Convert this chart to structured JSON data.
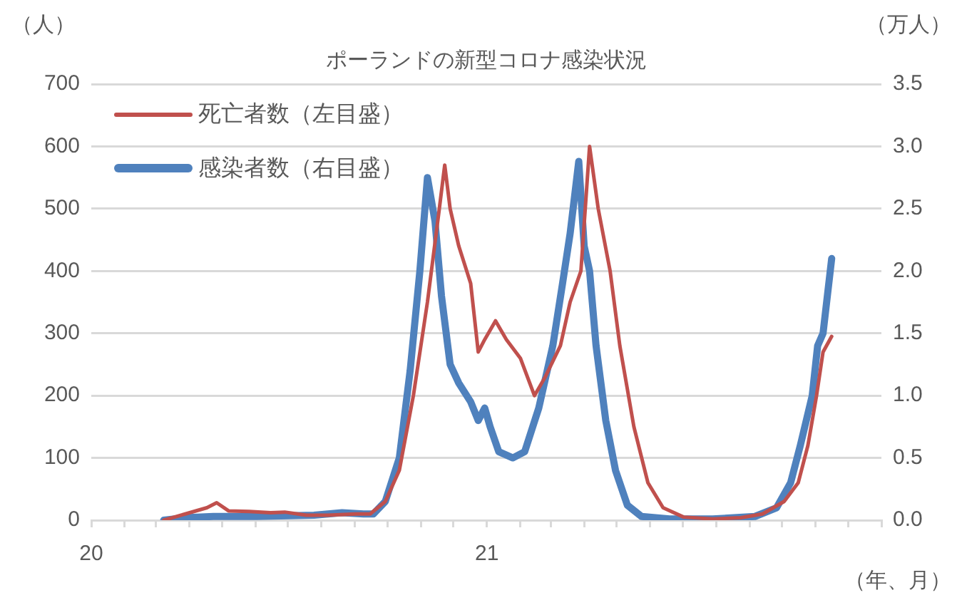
{
  "chart_data": {
    "type": "line",
    "title": "ポーランドの新型コロナ感染状況",
    "ylabel": "（人）",
    "y2label": "（万人）",
    "xlabel": "（年、月）",
    "xlim": [
      "2020-01",
      "2022-01"
    ],
    "xticks": [
      {
        "value": "2020-01",
        "label": "20"
      },
      {
        "value": "2020-02",
        "label": null
      },
      {
        "value": "2020-03",
        "label": null
      },
      {
        "value": "2020-04",
        "label": null
      },
      {
        "value": "2020-05",
        "label": null
      },
      {
        "value": "2020-06",
        "label": null
      },
      {
        "value": "2020-07",
        "label": null
      },
      {
        "value": "2020-08",
        "label": null
      },
      {
        "value": "2020-09",
        "label": null
      },
      {
        "value": "2020-10",
        "label": null
      },
      {
        "value": "2020-11",
        "label": null
      },
      {
        "value": "2020-12",
        "label": null
      },
      {
        "value": "2021-01",
        "label": "21"
      },
      {
        "value": "2021-02",
        "label": null
      },
      {
        "value": "2021-03",
        "label": null
      },
      {
        "value": "2021-04",
        "label": null
      },
      {
        "value": "2021-05",
        "label": null
      },
      {
        "value": "2021-06",
        "label": null
      },
      {
        "value": "2021-07",
        "label": null
      },
      {
        "value": "2021-08",
        "label": null
      },
      {
        "value": "2021-09",
        "label": null
      },
      {
        "value": "2021-10",
        "label": null
      },
      {
        "value": "2021-11",
        "label": null
      },
      {
        "value": "2021-12",
        "label": null
      },
      {
        "value": "2022-01",
        "label": null
      }
    ],
    "ylim": [
      0,
      700
    ],
    "yticks": [
      0,
      100,
      200,
      300,
      400,
      500,
      600,
      700
    ],
    "y2lim": [
      0,
      3.5
    ],
    "y2ticks": [
      {
        "value": 0,
        "label": "0.0"
      },
      {
        "value": 0.5,
        "label": "0.5"
      },
      {
        "value": 1,
        "label": "1.0"
      },
      {
        "value": 1.5,
        "label": "1.5"
      },
      {
        "value": 2,
        "label": "2.0"
      },
      {
        "value": 2.5,
        "label": "2.5"
      },
      {
        "value": 3,
        "label": "3.0"
      },
      {
        "value": 3.5,
        "label": "3.5"
      }
    ],
    "grid": "y",
    "legend": "top left",
    "marker": "none",
    "line_style": "solid",
    "series": [
      {
        "name": "死亡者数（左目盛）",
        "color": "#c0504d",
        "x": [
          "2020-03-08",
          "2020-03-28",
          "2020-04-17",
          "2020-04-26",
          "2020-05-07",
          "2020-05-26",
          "2020-06-15",
          "2020-06-28",
          "2020-07-18",
          "2020-08-07",
          "2020-09-02",
          "2020-09-15",
          "2020-09-29",
          "2020-10-12",
          "2020-10-25",
          "2020-11-07",
          "2020-11-18",
          "2020-11-23",
          "2020-11-28",
          "2020-12-06",
          "2020-12-17",
          "2020-12-24",
          "2020-12-30",
          "2021-01-09",
          "2021-01-19",
          "2021-02-01",
          "2021-02-14",
          "2021-02-24",
          "2021-03-10",
          "2021-03-19",
          "2021-03-29",
          "2021-04-06",
          "2021-04-14",
          "2021-04-25",
          "2021-05-04",
          "2021-05-17",
          "2021-05-30",
          "2021-06-13",
          "2021-07-02",
          "2021-07-29",
          "2021-08-24",
          "2021-09-13",
          "2021-10-03",
          "2021-10-16",
          "2021-10-25",
          "2021-11-02",
          "2021-11-08",
          "2021-11-16"
        ],
        "values": [
          0,
          10,
          20,
          28,
          15,
          14,
          12,
          13,
          8,
          8,
          10,
          10,
          30,
          80,
          200,
          350,
          500,
          570,
          500,
          440,
          380,
          270,
          290,
          320,
          290,
          260,
          200,
          230,
          280,
          350,
          400,
          600,
          500,
          400,
          280,
          150,
          60,
          20,
          5,
          2,
          4,
          10,
          30,
          60,
          120,
          200,
          270,
          295
        ]
      },
      {
        "name": "感染者数（右目盛）",
        "color": "#4f81bd",
        "axis": "y2",
        "x": [
          "2020-03-08",
          "2020-03-28",
          "2020-04-23",
          "2020-06-02",
          "2020-07-25",
          "2020-08-20",
          "2020-09-09",
          "2020-09-18",
          "2020-09-29",
          "2020-10-12",
          "2020-10-22",
          "2020-10-31",
          "2020-11-07",
          "2020-11-14",
          "2020-11-20",
          "2020-11-28",
          "2020-12-06",
          "2020-12-17",
          "2020-12-24",
          "2020-12-30",
          "2021-01-04",
          "2021-01-12",
          "2021-01-25",
          "2021-02-05",
          "2021-02-18",
          "2021-03-03",
          "2021-03-12",
          "2021-03-19",
          "2021-03-27",
          "2021-04-01",
          "2021-04-06",
          "2021-04-12",
          "2021-04-21",
          "2021-04-30",
          "2021-05-11",
          "2021-05-24",
          "2021-06-19",
          "2021-07-29",
          "2021-09-06",
          "2021-09-26",
          "2021-10-09",
          "2021-10-18",
          "2021-10-29",
          "2021-11-03",
          "2021-11-08",
          "2021-11-16"
        ],
        "values": [
          0,
          0.02,
          0.03,
          0.03,
          0.04,
          0.06,
          0.05,
          0.05,
          0.15,
          0.5,
          1.2,
          2.0,
          2.75,
          2.4,
          1.8,
          1.25,
          1.1,
          0.95,
          0.8,
          0.9,
          0.75,
          0.55,
          0.5,
          0.55,
          0.9,
          1.4,
          1.9,
          2.3,
          2.88,
          2.2,
          2.0,
          1.4,
          0.8,
          0.4,
          0.12,
          0.03,
          0.01,
          0.01,
          0.03,
          0.1,
          0.3,
          0.6,
          1.0,
          1.4,
          1.5,
          2.1
        ]
      }
    ]
  }
}
